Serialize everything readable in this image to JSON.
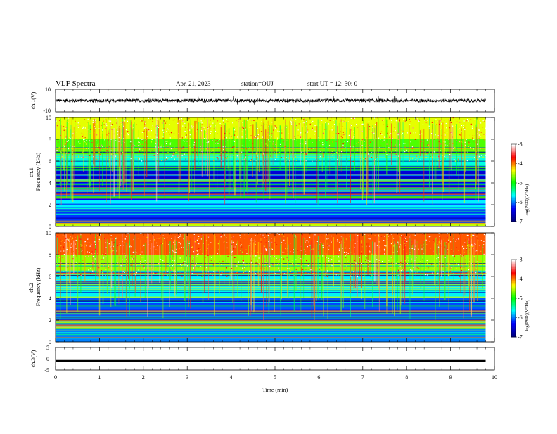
{
  "header": {
    "title": "VLF Spectra",
    "date": "Apr. 21, 2023",
    "station": "station=OUJ",
    "start": "start  UT  =   12: 30: 0"
  },
  "chart_data": [
    {
      "id": "ch1-waveform",
      "type": "line",
      "ylabel": "ch.1(V)",
      "ylim": [
        -10,
        10
      ],
      "yticks": [
        "10",
        "-10"
      ],
      "xlim": [
        0,
        10
      ],
      "color": "#000000",
      "series": [
        {
          "baseline": 0,
          "amplitude_range": [
            -1.5,
            1.5
          ]
        }
      ]
    },
    {
      "id": "ch1-spectrogram",
      "type": "heatmap",
      "ylabel": "ch.1\nFrequency (kHz)",
      "ylim": [
        0,
        10
      ],
      "yticks": [
        "0",
        "2",
        "4",
        "6",
        "8",
        "10"
      ],
      "xlim": [
        0,
        9.8
      ],
      "colorbar": {
        "label": "log(PSD)(V²/Hz)",
        "range": [
          -7,
          -3
        ],
        "ticks": [
          "-3",
          "-4",
          "-5",
          "-6",
          "-7"
        ],
        "colors": [
          "#000080",
          "#0000ff",
          "#00ffff",
          "#00ff00",
          "#ffff00",
          "#ff0000",
          "#ffffff"
        ]
      },
      "noise_floor_level": -6.7,
      "bands": [
        {
          "freq_khz": [
            0.0,
            0.3
          ],
          "level": -4.5
        },
        {
          "freq_khz": [
            0.3,
            1.6
          ],
          "level": -6.2
        },
        {
          "freq_khz": [
            1.6,
            2.4
          ],
          "level": -5.7
        },
        {
          "freq_khz": [
            2.4,
            5.6
          ],
          "level": -6.5
        },
        {
          "freq_khz": [
            5.6,
            6.6
          ],
          "level": -5.6
        },
        {
          "freq_khz": [
            6.6,
            8.0
          ],
          "level": -4.8
        },
        {
          "freq_khz": [
            8.0,
            10.0
          ],
          "level": -4.4
        }
      ]
    },
    {
      "id": "ch2-spectrogram",
      "type": "heatmap",
      "ylabel": "ch.2\nFrequency (kHz)",
      "ylim": [
        0,
        10
      ],
      "yticks": [
        "0",
        "2",
        "4",
        "6",
        "8",
        "10"
      ],
      "xlim": [
        0,
        9.8
      ],
      "colorbar": {
        "label": "log(PSD)(V²/Hz)",
        "range": [
          -7,
          -3
        ],
        "ticks": [
          "-3",
          "-4",
          "-5",
          "-6",
          "-7"
        ],
        "colors": [
          "#000080",
          "#0000ff",
          "#00ffff",
          "#00ff00",
          "#ffff00",
          "#ff0000",
          "#ffffff"
        ]
      },
      "bands": [
        {
          "freq_khz": [
            0.0,
            2.0
          ],
          "level": -6.0
        },
        {
          "freq_khz": [
            2.0,
            4.0
          ],
          "level": -6.1
        },
        {
          "freq_khz": [
            4.0,
            6.0
          ],
          "level": -5.7
        },
        {
          "freq_khz": [
            6.0,
            8.0
          ],
          "level": -4.6
        },
        {
          "freq_khz": [
            8.0,
            10.0
          ],
          "level": -3.9
        }
      ]
    },
    {
      "id": "ch3-waveform",
      "type": "line",
      "ylabel": "ch.3(V)",
      "ylim": [
        -5,
        5
      ],
      "yticks": [
        "5",
        "0",
        "-5"
      ],
      "xlim": [
        0,
        10
      ],
      "xlabel": "Time (min)",
      "xticks": [
        "0",
        "1",
        "2",
        "3",
        "4",
        "5",
        "6",
        "7",
        "8",
        "9",
        "10"
      ],
      "color": "#000000",
      "series": [
        {
          "level": -1,
          "xrange": [
            0,
            9.8
          ]
        }
      ]
    }
  ]
}
